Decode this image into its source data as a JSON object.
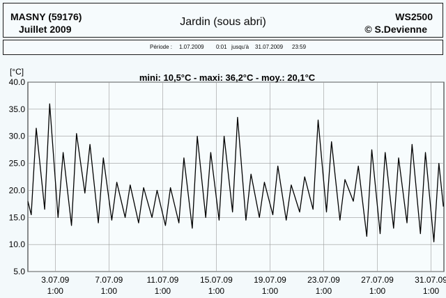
{
  "header": {
    "station": "MASNY (59176)",
    "month": "Juillet  2009",
    "location": "Jardin (sous abri)",
    "device": "WS2500",
    "author": "© S.Devienne"
  },
  "period": {
    "label": "Période :",
    "start_date": "1.07.2009",
    "start_time": "0:01",
    "until": "jusqu'à",
    "end_date": "31.07.2009",
    "end_time": "23:59"
  },
  "chart_data": {
    "type": "line",
    "title": "mini: 10,5°C - maxi: 36,2°C - moy.: 20,1°C",
    "ylabel": "[°C]",
    "xlabel": "",
    "ylim": [
      5,
      40
    ],
    "yticks": [
      "5.0",
      "10.0",
      "15.0",
      "20.0",
      "25.0",
      "30.0",
      "35.0",
      "40.0"
    ],
    "grid": true,
    "xlim": [
      "2009-07-01 00:00",
      "2009-08-01 00:00"
    ],
    "xticks": [
      {
        "date": "3.07.09",
        "time": "1:00",
        "x": "2009-07-03 01:00"
      },
      {
        "date": "7.07.09",
        "time": "1:00",
        "x": "2009-07-07 01:00"
      },
      {
        "date": "11.07.09",
        "time": "1:00",
        "x": "2009-07-11 01:00"
      },
      {
        "date": "15.07.09",
        "time": "1:00",
        "x": "2009-07-15 01:00"
      },
      {
        "date": "19.07.09",
        "time": "1:00",
        "x": "2009-07-19 01:00"
      },
      {
        "date": "23.07.09",
        "time": "1:00",
        "x": "2009-07-23 01:00"
      },
      {
        "date": "27.07.09",
        "time": "1:00",
        "x": "2009-07-27 01:00"
      },
      {
        "date": "31.07.09",
        "time": "1:00",
        "x": "2009-07-31 01:00"
      }
    ],
    "series": [
      {
        "color": "#000000",
        "x": [
          "2009-07-01 00:00",
          "2009-07-01 06:00",
          "2009-07-01 15:00",
          "2009-07-02 06:00",
          "2009-07-02 15:00",
          "2009-07-03 06:00",
          "2009-07-03 15:00",
          "2009-07-04 06:00",
          "2009-07-04 15:00",
          "2009-07-05 06:00",
          "2009-07-05 15:00",
          "2009-07-06 06:00",
          "2009-07-06 15:00",
          "2009-07-07 06:00",
          "2009-07-07 15:00",
          "2009-07-08 06:00",
          "2009-07-08 15:00",
          "2009-07-09 06:00",
          "2009-07-09 15:00",
          "2009-07-10 06:00",
          "2009-07-10 15:00",
          "2009-07-11 06:00",
          "2009-07-11 15:00",
          "2009-07-12 06:00",
          "2009-07-12 15:00",
          "2009-07-13 06:00",
          "2009-07-13 15:00",
          "2009-07-14 06:00",
          "2009-07-14 15:00",
          "2009-07-15 06:00",
          "2009-07-15 15:00",
          "2009-07-16 06:00",
          "2009-07-16 15:00",
          "2009-07-17 06:00",
          "2009-07-17 15:00",
          "2009-07-18 06:00",
          "2009-07-18 15:00",
          "2009-07-19 06:00",
          "2009-07-19 15:00",
          "2009-07-20 06:00",
          "2009-07-20 15:00",
          "2009-07-21 06:00",
          "2009-07-21 15:00",
          "2009-07-22 06:00",
          "2009-07-22 15:00",
          "2009-07-23 06:00",
          "2009-07-23 15:00",
          "2009-07-24 06:00",
          "2009-07-24 15:00",
          "2009-07-25 06:00",
          "2009-07-25 15:00",
          "2009-07-26 06:00",
          "2009-07-26 15:00",
          "2009-07-27 06:00",
          "2009-07-27 15:00",
          "2009-07-28 06:00",
          "2009-07-28 15:00",
          "2009-07-29 06:00",
          "2009-07-29 15:00",
          "2009-07-30 06:00",
          "2009-07-30 15:00",
          "2009-07-31 06:00",
          "2009-07-31 15:00",
          "2009-07-31 23:00"
        ],
        "y": [
          18,
          15.5,
          31.5,
          16.5,
          36,
          15,
          27,
          13.5,
          30.5,
          19.5,
          28.5,
          14,
          26,
          14.5,
          21.5,
          15,
          21,
          14,
          20.5,
          15,
          20,
          13.5,
          20.5,
          14,
          26,
          13,
          30,
          15,
          27,
          14.5,
          30,
          16,
          33.5,
          14.5,
          23,
          15,
          21.5,
          15.5,
          24.5,
          14.5,
          21,
          16,
          22.5,
          16.5,
          33,
          16,
          29,
          14.5,
          22,
          18,
          24.5,
          11.5,
          27.5,
          12,
          27,
          13,
          26,
          14,
          28.5,
          12,
          27,
          10.5,
          25,
          17
        ]
      }
    ]
  }
}
